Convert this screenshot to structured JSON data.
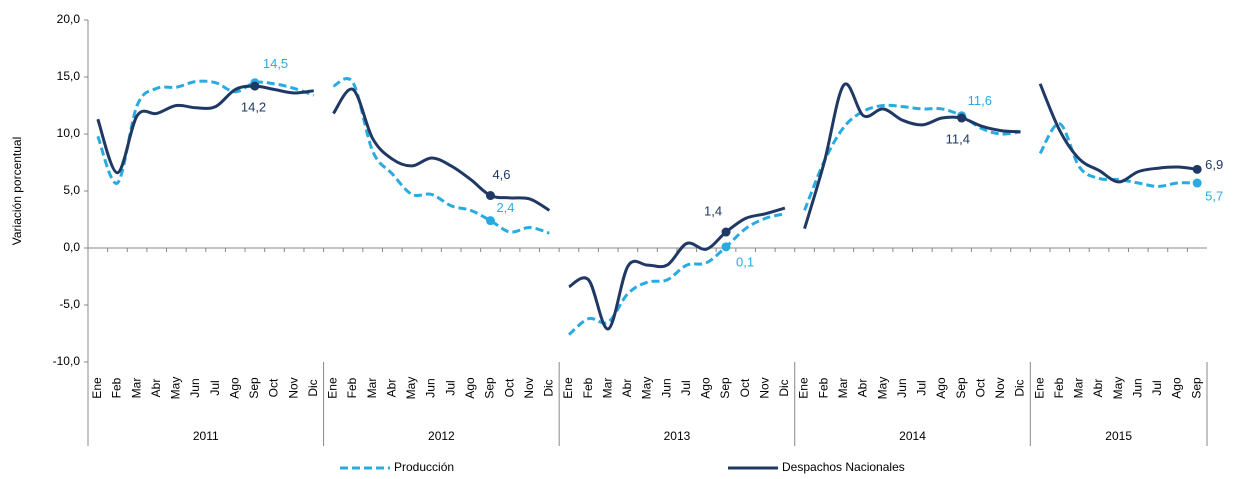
{
  "chart_data": {
    "type": "line",
    "y_label": "Variación porcentual",
    "categories": [
      "Ene",
      "Feb",
      "Mar",
      "Abr",
      "May",
      "Jun",
      "Jul",
      "Ago",
      "Sep",
      "Oct",
      "Nov",
      "Dic",
      "Ene",
      "Feb",
      "Mar",
      "Abr",
      "May",
      "Jun",
      "Jul",
      "Ago",
      "Sep",
      "Oct",
      "Nov",
      "Dic",
      "Ene",
      "Feb",
      "Mar",
      "Abr",
      "May",
      "Jun",
      "Jul",
      "Ago",
      "Sep",
      "Oct",
      "Nov",
      "Dic",
      "Ene",
      "Feb",
      "Mar",
      "Abr",
      "May",
      "Jun",
      "Jul",
      "Ago",
      "Sep",
      "Oct",
      "Nov",
      "Dic",
      "Ene",
      "Feb",
      "Mar",
      "Abr",
      "May",
      "Jun",
      "Jul",
      "Ago",
      "Sep"
    ],
    "groups": [
      "2011",
      "2012",
      "2013",
      "2014",
      "2015"
    ],
    "ylim": [
      -10,
      20
    ],
    "yticks": [
      {
        "value": -10,
        "label": "-10,0"
      },
      {
        "value": -5,
        "label": "-5,0"
      },
      {
        "value": 0,
        "label": "0,0"
      },
      {
        "value": 5,
        "label": "5,0"
      },
      {
        "value": 10,
        "label": "10,0"
      },
      {
        "value": 15,
        "label": "15,0"
      },
      {
        "value": 20,
        "label": "20,0"
      }
    ],
    "series": [
      {
        "name": "Producción",
        "color": "#29abe2",
        "dashed": true,
        "values": [
          9.8,
          5.7,
          12.5,
          14.0,
          14.1,
          14.6,
          14.5,
          13.7,
          14.5,
          14.4,
          14.0,
          13.4,
          14.2,
          14.5,
          8.5,
          6.5,
          4.7,
          4.7,
          3.7,
          3.3,
          2.4,
          1.4,
          1.8,
          1.3,
          -7.6,
          -6.2,
          -6.5,
          -4.0,
          -3.0,
          -2.8,
          -1.5,
          -1.3,
          0.1,
          1.7,
          2.6,
          3.0,
          3.3,
          7.6,
          10.6,
          12.0,
          12.5,
          12.4,
          12.2,
          12.2,
          11.6,
          10.5,
          10.0,
          10.2,
          8.3,
          10.9,
          7.1,
          6.1,
          6.0,
          5.7,
          5.4,
          5.7,
          5.7
        ],
        "value_labels": [
          null,
          null,
          null,
          null,
          null,
          null,
          null,
          null,
          "14,5",
          null,
          null,
          null,
          null,
          null,
          null,
          null,
          null,
          null,
          null,
          null,
          "2,4",
          null,
          null,
          null,
          null,
          null,
          null,
          null,
          null,
          null,
          null,
          null,
          "0,1",
          null,
          null,
          null,
          null,
          null,
          null,
          null,
          null,
          null,
          null,
          null,
          "11,6",
          null,
          null,
          null,
          null,
          null,
          null,
          null,
          null,
          null,
          null,
          null,
          "5,7"
        ]
      },
      {
        "name": "Despachos Nacionales",
        "color": "#1f3864",
        "dashed": false,
        "values": [
          11.3,
          6.6,
          11.6,
          11.8,
          12.5,
          12.3,
          12.4,
          13.9,
          14.2,
          13.9,
          13.6,
          13.8,
          11.8,
          13.9,
          9.6,
          7.8,
          7.2,
          7.9,
          7.2,
          6.0,
          4.6,
          4.4,
          4.3,
          3.3,
          -3.4,
          -2.8,
          -7.1,
          -1.6,
          -1.5,
          -1.5,
          0.4,
          -0.1,
          1.4,
          2.6,
          3.0,
          3.5,
          1.7,
          7.5,
          14.3,
          11.6,
          12.2,
          11.2,
          10.8,
          11.4,
          11.4,
          10.7,
          10.3,
          10.2,
          14.4,
          10.3,
          7.8,
          6.8,
          5.8,
          6.7,
          7.0,
          7.1,
          6.9
        ],
        "value_labels": [
          null,
          null,
          null,
          null,
          null,
          null,
          null,
          null,
          "14,2",
          null,
          null,
          null,
          null,
          null,
          null,
          null,
          null,
          null,
          null,
          null,
          "4,6",
          null,
          null,
          null,
          null,
          null,
          null,
          null,
          null,
          null,
          null,
          null,
          "1,4",
          null,
          null,
          null,
          null,
          null,
          null,
          null,
          null,
          null,
          null,
          null,
          "11,4",
          null,
          null,
          null,
          null,
          null,
          null,
          null,
          null,
          null,
          null,
          null,
          "6,9"
        ]
      }
    ]
  }
}
